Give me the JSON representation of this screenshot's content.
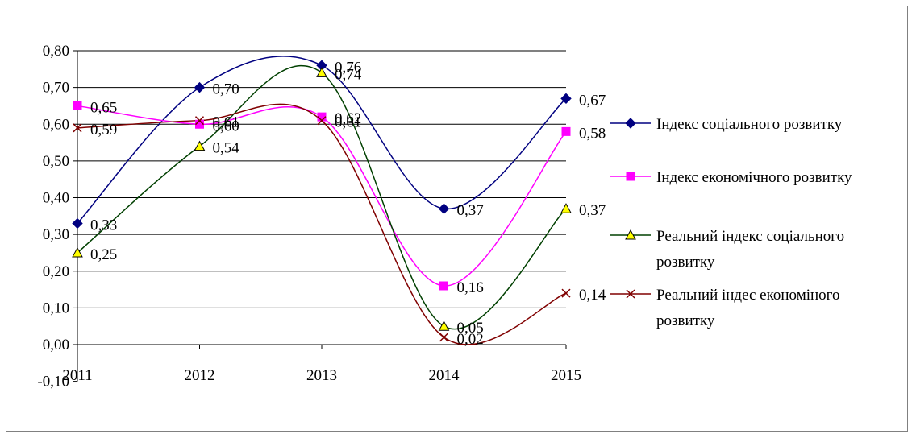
{
  "chart_data": {
    "type": "line",
    "categories": [
      "2011",
      "2012",
      "2013",
      "2014",
      "2015"
    ],
    "ylim": [
      -0.1,
      0.8
    ],
    "yticks": [
      "-0,10",
      "0,00",
      "0,10",
      "0,20",
      "0,30",
      "0,40",
      "0,50",
      "0,60",
      "0,70",
      "0,80"
    ],
    "grid": true,
    "smooth": true,
    "legend_position": "right",
    "series": [
      {
        "name": "Індекс соціального розвитку",
        "legend_lines": [
          "Індекс соціального розвитку"
        ],
        "values": [
          0.33,
          0.7,
          0.76,
          0.37,
          0.67
        ],
        "labels": [
          "0,33",
          "0,70",
          "0,76",
          "0,37",
          "0,67"
        ],
        "color": "#000080",
        "marker": "diamond"
      },
      {
        "name": "Індекс економічного розвитку",
        "legend_lines": [
          "Індекс економічного розвитку"
        ],
        "values": [
          0.65,
          0.6,
          0.62,
          0.16,
          0.58
        ],
        "labels": [
          "0,65",
          "0,60",
          "0,62",
          "0,16",
          "0,58"
        ],
        "color": "#ff00ff",
        "marker": "square"
      },
      {
        "name": "Реальний індекс соціального розвитку",
        "legend_lines": [
          "Реальний індекс соціального",
          "розвитку"
        ],
        "values": [
          0.25,
          0.54,
          0.74,
          0.05,
          0.37
        ],
        "labels": [
          "0,25",
          "0,54",
          "0,74",
          "0,05",
          "0,37"
        ],
        "color": "#004000",
        "marker": "triangle",
        "marker_fill": "#ffff00"
      },
      {
        "name": "Реальний індес економіного розвитку",
        "legend_lines": [
          "Реальний індес економіного",
          "розвитку"
        ],
        "values": [
          0.59,
          0.61,
          0.61,
          0.02,
          0.14
        ],
        "labels": [
          "0,59",
          "0,61",
          "0,61",
          "0,02",
          "0,14"
        ],
        "color": "#800000",
        "marker": "x"
      }
    ]
  }
}
